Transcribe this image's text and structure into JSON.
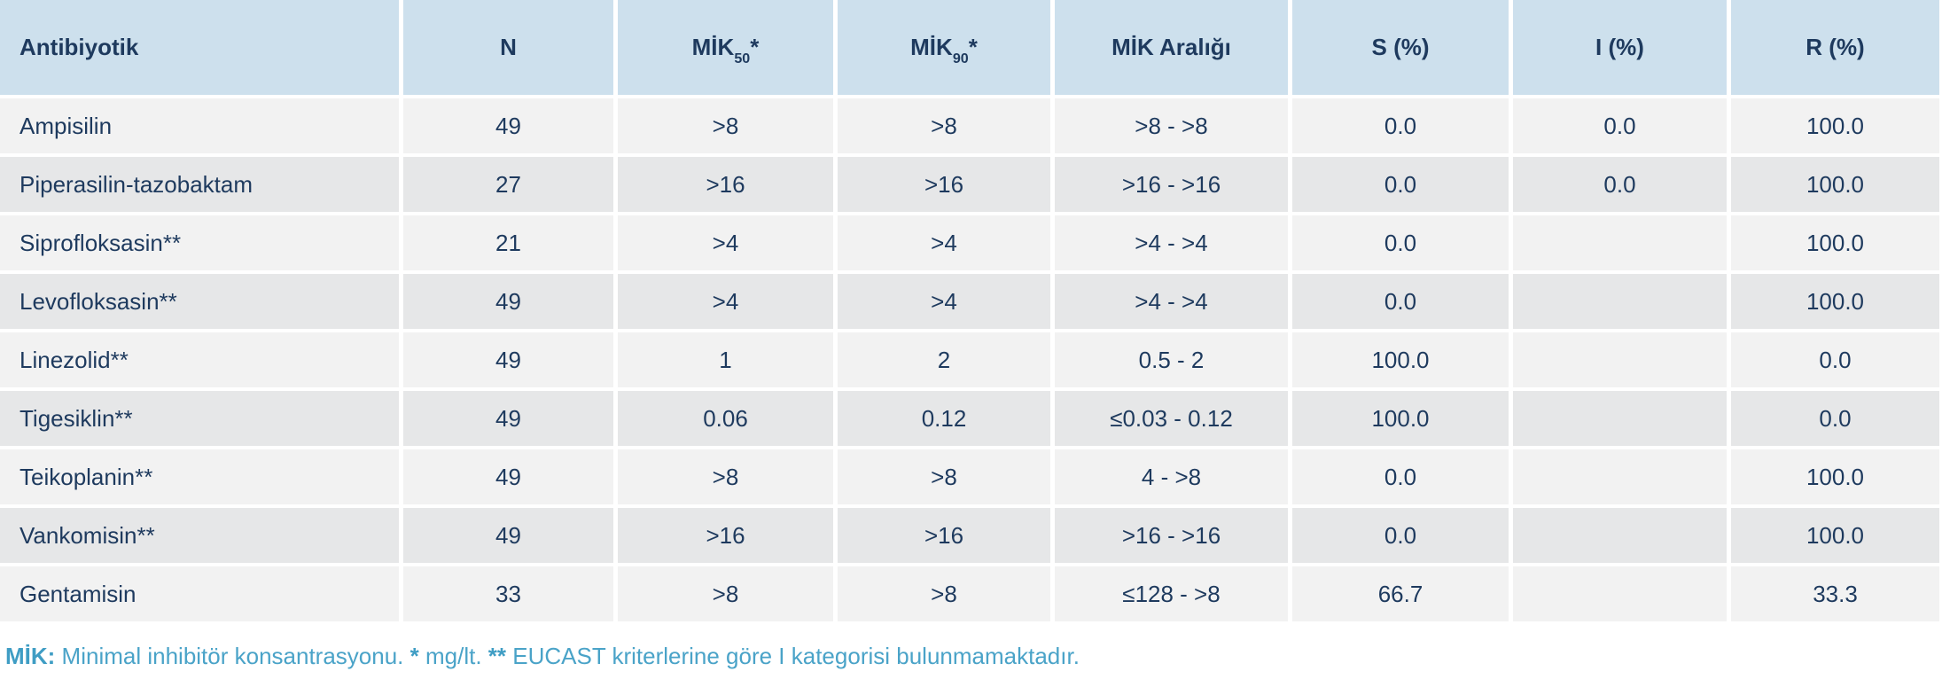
{
  "table": {
    "headers": [
      {
        "text": "Antibiyotik",
        "sub": "",
        "suffix": ""
      },
      {
        "text": "N",
        "sub": "",
        "suffix": ""
      },
      {
        "text": "MİK",
        "sub": "50",
        "suffix": "*"
      },
      {
        "text": "MİK",
        "sub": "90",
        "suffix": "*"
      },
      {
        "text": "MİK Aralığı",
        "sub": "",
        "suffix": ""
      },
      {
        "text": "S (%)",
        "sub": "",
        "suffix": ""
      },
      {
        "text": "I (%)",
        "sub": "",
        "suffix": ""
      },
      {
        "text": "R (%)",
        "sub": "",
        "suffix": ""
      }
    ],
    "rows": [
      {
        "antibiotic": "Ampisilin",
        "n": "49",
        "mic50": ">8",
        "mic90": ">8",
        "range": ">8 - >8",
        "s": "0.0",
        "i": "0.0",
        "r": "100.0"
      },
      {
        "antibiotic": "Piperasilin-tazobaktam",
        "n": "27",
        "mic50": ">16",
        "mic90": ">16",
        "range": ">16 - >16",
        "s": "0.0",
        "i": "0.0",
        "r": "100.0"
      },
      {
        "antibiotic": "Siprofloksasin**",
        "n": "21",
        "mic50": ">4",
        "mic90": ">4",
        "range": ">4 - >4",
        "s": "0.0",
        "i": "",
        "r": "100.0"
      },
      {
        "antibiotic": "Levofloksasin**",
        "n": "49",
        "mic50": ">4",
        "mic90": ">4",
        "range": ">4 - >4",
        "s": "0.0",
        "i": "",
        "r": "100.0"
      },
      {
        "antibiotic": "Linezolid**",
        "n": "49",
        "mic50": "1",
        "mic90": "2",
        "range": "0.5 - 2",
        "s": "100.0",
        "i": "",
        "r": "0.0"
      },
      {
        "antibiotic": "Tigesiklin**",
        "n": "49",
        "mic50": "0.06",
        "mic90": "0.12",
        "range": "≤0.03 - 0.12",
        "s": "100.0",
        "i": "",
        "r": "0.0"
      },
      {
        "antibiotic": "Teikoplanin**",
        "n": "49",
        "mic50": ">8",
        "mic90": ">8",
        "range": "4 - >8",
        "s": "0.0",
        "i": "",
        "r": "100.0"
      },
      {
        "antibiotic": "Vankomisin**",
        "n": "49",
        "mic50": ">16",
        "mic90": ">16",
        "range": ">16 - >16",
        "s": "0.0",
        "i": "",
        "r": "100.0"
      },
      {
        "antibiotic": "Gentamisin",
        "n": "33",
        "mic50": ">8",
        "mic90": ">8",
        "range": "≤128 - >8",
        "s": "66.7",
        "i": "",
        "r": "33.3"
      }
    ]
  },
  "footnote": {
    "parts": [
      {
        "text": "MİK:"
      },
      {
        "text": " Minimal inhibitör konsantrasyonu. "
      },
      {
        "text": "*"
      },
      {
        "text": " mg/lt. "
      },
      {
        "text": "**"
      },
      {
        "text": " EUCAST kriterlerine göre I kategorisi bulunmamaktadır."
      }
    ]
  },
  "colors": {
    "header_bg": "#cde0ed",
    "row_odd_bg": "#f2f2f2",
    "row_even_bg": "#e6e7e8",
    "text_navy": "#1e3a5e",
    "footnote_teal": "#4aa3c8"
  }
}
